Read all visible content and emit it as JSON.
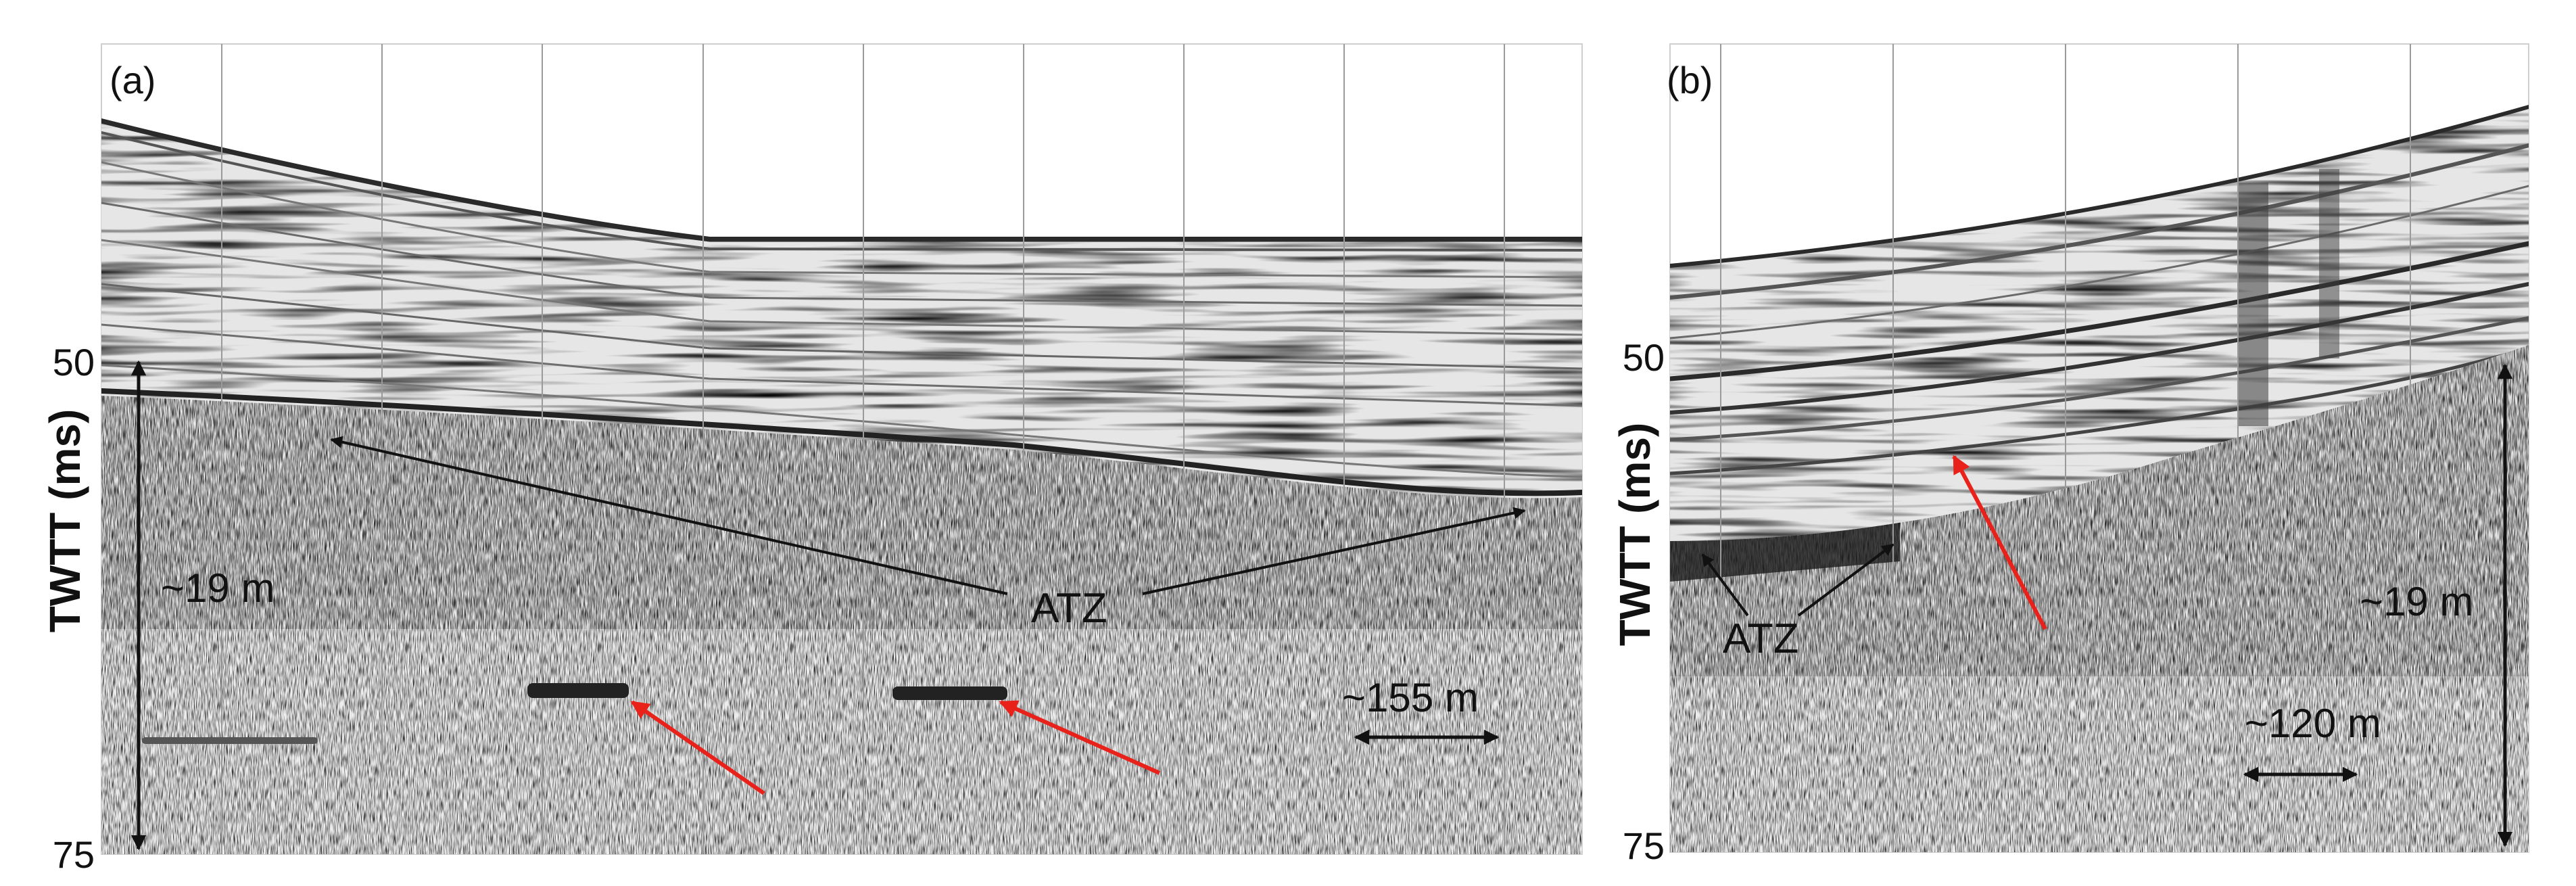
{
  "figure": {
    "panels": [
      {
        "id": "a",
        "panel_label": "(a)",
        "y_axis": {
          "label": "TWTT (ms)",
          "ticks": [
            "50",
            "75"
          ]
        },
        "annotations": {
          "depth_scale": "~19 m",
          "horizontal_scale": "~155 m",
          "zone": "ATZ"
        }
      },
      {
        "id": "b",
        "panel_label": "(b)",
        "y_axis": {
          "label": "TWTT (ms)",
          "ticks": [
            "50",
            "75"
          ]
        },
        "annotations": {
          "depth_scale": "~19 m",
          "horizontal_scale": "~120 m",
          "zone": "ATZ"
        }
      }
    ],
    "colors": {
      "annotation_arrow": "#111111",
      "highlight_arrow": "#e8211a",
      "gridline": "#9a9a9a"
    }
  }
}
